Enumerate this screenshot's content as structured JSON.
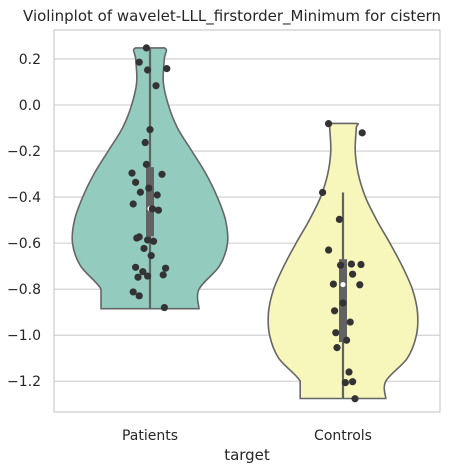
{
  "chart_data": {
    "type": "violin",
    "title": "Violinplot of wavelet-LLL_firstorder_Minimum for cistern",
    "xlabel": "target",
    "ylabel": "",
    "categories": [
      "Patients",
      "Controls"
    ],
    "ylim": [
      -1.35,
      0.33
    ],
    "yticks": [
      0.2,
      0.0,
      -0.2,
      -0.4,
      -0.6,
      -0.8,
      -1.0,
      -1.2
    ],
    "ytick_labels": [
      "0.2",
      "0.0",
      "−0.2",
      "−0.4",
      "−0.6",
      "−0.8",
      "−1.0",
      "−1.2"
    ],
    "grid": true,
    "violin_colors": [
      "#94cbbf",
      "#f7f6bb"
    ],
    "point_color": "#333333",
    "box_color": "#626262",
    "edge_color": "#666666",
    "groups": [
      {
        "name": "Patients",
        "min": -0.885,
        "max": 0.248,
        "box_q1": -0.57,
        "box_q3": -0.27,
        "median": -0.45,
        "whisker_low": -0.885,
        "whisker_high": 0.248,
        "profile": [
          [
            -0.885,
            0.0
          ],
          [
            -0.8,
            0.48
          ],
          [
            -0.7,
            0.68
          ],
          [
            -0.6,
            0.76
          ],
          [
            -0.5,
            0.74
          ],
          [
            -0.4,
            0.66
          ],
          [
            -0.3,
            0.55
          ],
          [
            -0.2,
            0.41
          ],
          [
            -0.1,
            0.27
          ],
          [
            0.0,
            0.18
          ],
          [
            0.1,
            0.13
          ],
          [
            0.2,
            0.14
          ],
          [
            0.248,
            0.0
          ]
        ],
        "points": [
          [
            -0.03,
            0.248
          ],
          [
            -0.09,
            0.186
          ],
          [
            -0.02,
            0.152
          ],
          [
            0.14,
            0.158
          ],
          [
            0.05,
            0.084
          ],
          [
            0.0,
            -0.107
          ],
          [
            -0.04,
            -0.163
          ],
          [
            -0.03,
            -0.258
          ],
          [
            -0.15,
            -0.296
          ],
          [
            0.1,
            -0.301
          ],
          [
            -0.12,
            -0.336
          ],
          [
            -0.01,
            -0.361
          ],
          [
            -0.08,
            -0.379
          ],
          [
            0.06,
            -0.391
          ],
          [
            -0.14,
            -0.43
          ],
          [
            0.02,
            -0.451
          ],
          [
            0.07,
            -0.457
          ],
          [
            -0.11,
            -0.578
          ],
          [
            -0.09,
            -0.573
          ],
          [
            -0.02,
            -0.586
          ],
          [
            0.03,
            -0.592
          ],
          [
            -0.05,
            -0.623
          ],
          [
            0.01,
            -0.654
          ],
          [
            -0.12,
            -0.705
          ],
          [
            0.13,
            -0.709
          ],
          [
            -0.06,
            -0.724
          ],
          [
            0.11,
            -0.738
          ],
          [
            -0.02,
            -0.743
          ],
          [
            -0.1,
            -0.748
          ],
          [
            -0.14,
            -0.812
          ],
          [
            -0.09,
            -0.829
          ],
          [
            0.12,
            -0.88
          ]
        ]
      },
      {
        "name": "Controls",
        "min": -1.275,
        "max": -0.08,
        "box_q1": -1.03,
        "box_q3": -0.67,
        "median": -0.78,
        "whisker_low": -1.275,
        "whisker_high": -0.38,
        "profile": [
          [
            -1.275,
            0.0
          ],
          [
            -1.2,
            0.42
          ],
          [
            -1.1,
            0.63
          ],
          [
            -1.0,
            0.72
          ],
          [
            -0.9,
            0.73
          ],
          [
            -0.8,
            0.68
          ],
          [
            -0.7,
            0.58
          ],
          [
            -0.6,
            0.46
          ],
          [
            -0.5,
            0.33
          ],
          [
            -0.4,
            0.22
          ],
          [
            -0.3,
            0.15
          ],
          [
            -0.2,
            0.12
          ],
          [
            -0.1,
            0.13
          ],
          [
            -0.08,
            0.0
          ]
        ],
        "points": [
          [
            -0.12,
            -0.081
          ],
          [
            0.16,
            -0.121
          ],
          [
            -0.17,
            -0.38
          ],
          [
            -0.03,
            -0.497
          ],
          [
            -0.12,
            -0.63
          ],
          [
            0.07,
            -0.691
          ],
          [
            0.15,
            -0.693
          ],
          [
            -0.02,
            -0.696
          ],
          [
            0.08,
            -0.735
          ],
          [
            -0.08,
            -0.778
          ],
          [
            0.14,
            -0.781
          ],
          [
            0.0,
            -0.86
          ],
          [
            -0.07,
            -0.894
          ],
          [
            0.06,
            -0.943
          ],
          [
            -0.06,
            -0.989
          ],
          [
            0.03,
            -1.022
          ],
          [
            -0.05,
            -1.054
          ],
          [
            0.05,
            -1.16
          ],
          [
            0.08,
            -1.202
          ],
          [
            0.02,
            -1.206
          ],
          [
            0.1,
            -1.276
          ]
        ]
      }
    ]
  }
}
